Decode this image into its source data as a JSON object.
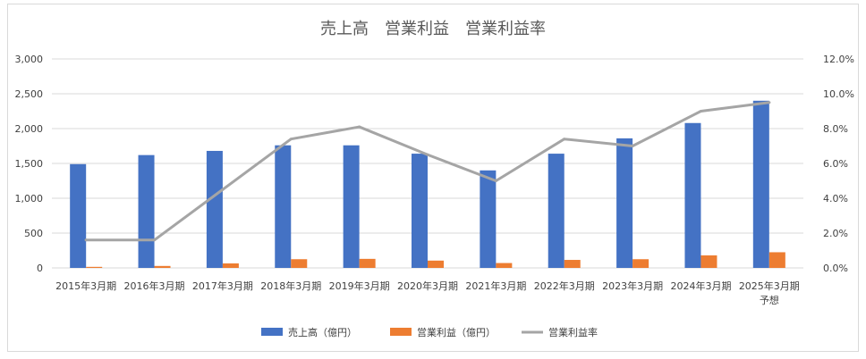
{
  "chart_data": {
    "type": "bar",
    "title": "売上高　営業利益　営業利益率",
    "categories": [
      "2015年3月期",
      "2016年3月期",
      "2017年3月期",
      "2018年3月期",
      "2019年3月期",
      "2020年3月期",
      "2021年3月期",
      "2022年3月期",
      "2023年3月期",
      "2024年3月期",
      "2025年3月期\n予想"
    ],
    "series": [
      {
        "name": "売上高（億円）",
        "kind": "bar",
        "axis": "left",
        "color": "#4472c4",
        "values": [
          1490,
          1620,
          1680,
          1760,
          1760,
          1640,
          1400,
          1640,
          1860,
          2080,
          2400
        ]
      },
      {
        "name": "営業利益（億円）",
        "kind": "bar",
        "axis": "left",
        "color": "#ed7d31",
        "values": [
          15,
          28,
          65,
          125,
          130,
          105,
          70,
          115,
          125,
          180,
          225
        ]
      },
      {
        "name": "営業利益率",
        "kind": "line",
        "axis": "right",
        "color": "#a5a5a5",
        "values": [
          1.6,
          1.6,
          4.5,
          7.4,
          8.1,
          6.5,
          5.0,
          7.4,
          7.0,
          9.0,
          9.5
        ]
      }
    ],
    "y_left": {
      "min": 0,
      "max": 3000,
      "ticks": [
        "0",
        "500",
        "1,000",
        "1,500",
        "2,000",
        "2,500",
        "3,000"
      ]
    },
    "y_right": {
      "min": 0,
      "max": 12,
      "ticks": [
        "0.0%",
        "2.0%",
        "4.0%",
        "6.0%",
        "8.0%",
        "10.0%",
        "12.0%"
      ]
    },
    "grid": true,
    "legend_position": "bottom"
  }
}
